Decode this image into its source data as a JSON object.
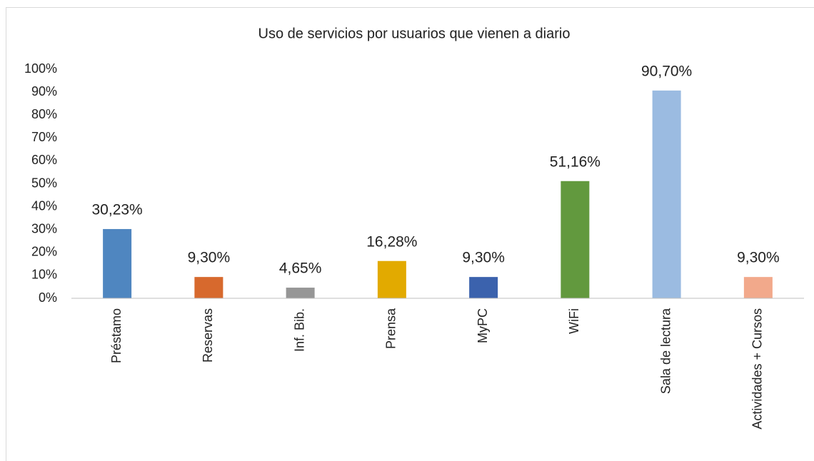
{
  "chart_data": {
    "type": "bar",
    "title": "Uso de servicios por usuarios que vienen a diario",
    "categories": [
      "Préstamo",
      "Reservas",
      "Inf. Bib.",
      "Prensa",
      "MyPC",
      "WiFi",
      "Sala de lectura",
      "Actividades + Cursos"
    ],
    "values": [
      30.23,
      9.3,
      4.65,
      16.28,
      9.3,
      51.16,
      90.7,
      9.3
    ],
    "value_labels": [
      "30,23%",
      "9,30%",
      "4,65%",
      "16,28%",
      "9,30%",
      "51,16%",
      "90,70%",
      "9,30%"
    ],
    "colors": [
      "#4f86c0",
      "#d7692d",
      "#969696",
      "#e2aa00",
      "#3b62ad",
      "#62993e",
      "#9bbbe1",
      "#f2a98b"
    ],
    "ylim": [
      0,
      100
    ],
    "yticks": [
      {
        "value": 0,
        "label": "0%"
      },
      {
        "value": 10,
        "label": "10%"
      },
      {
        "value": 20,
        "label": "20%"
      },
      {
        "value": 30,
        "label": "30%"
      },
      {
        "value": 40,
        "label": "40%"
      },
      {
        "value": 50,
        "label": "50%"
      },
      {
        "value": 60,
        "label": "60%"
      },
      {
        "value": 70,
        "label": "70%"
      },
      {
        "value": 80,
        "label": "80%"
      },
      {
        "value": 90,
        "label": "90%"
      },
      {
        "value": 100,
        "label": "100%"
      }
    ],
    "grid": false
  }
}
